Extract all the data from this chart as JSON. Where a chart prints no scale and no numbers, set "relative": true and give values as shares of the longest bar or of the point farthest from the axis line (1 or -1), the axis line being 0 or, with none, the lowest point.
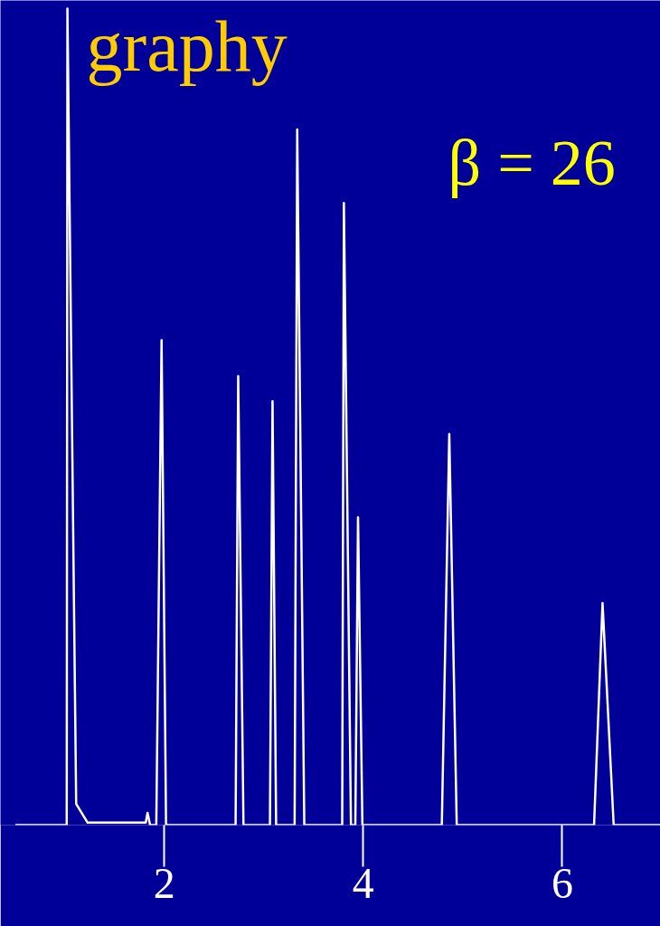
{
  "chart_data": {
    "type": "line",
    "title": "graphy",
    "annotations": [
      "β = 26"
    ],
    "relative": true,
    "xlim": [
      0.354,
      6.986
    ],
    "xticks": [
      2,
      4,
      6
    ],
    "grid": false,
    "series": [
      {
        "color": "#ffffff",
        "x": [
          0.504,
          1.02,
          1.027,
          1.115,
          1.23,
          1.814,
          1.832,
          1.858,
          1.92,
          1.973,
          2.018,
          2.717,
          2.743,
          2.796,
          3.062,
          3.088,
          3.124,
          3.31,
          3.336,
          3.407,
          3.788,
          3.805,
          3.876,
          3.894,
          3.92,
          3.947,
          3.991,
          4.789,
          4.864,
          4.939,
          6.319,
          6.404,
          6.516,
          6.986
        ],
        "values": [
          0,
          0,
          1,
          0.026,
          0.003,
          0.003,
          0.015,
          0,
          0,
          0.594,
          0,
          0,
          0.55,
          0,
          0,
          0.519,
          0,
          0,
          0.852,
          0,
          0,
          0.762,
          0,
          0,
          0,
          0.377,
          0,
          0,
          0.479,
          0,
          0,
          0.272,
          0,
          0
        ]
      }
    ]
  }
}
